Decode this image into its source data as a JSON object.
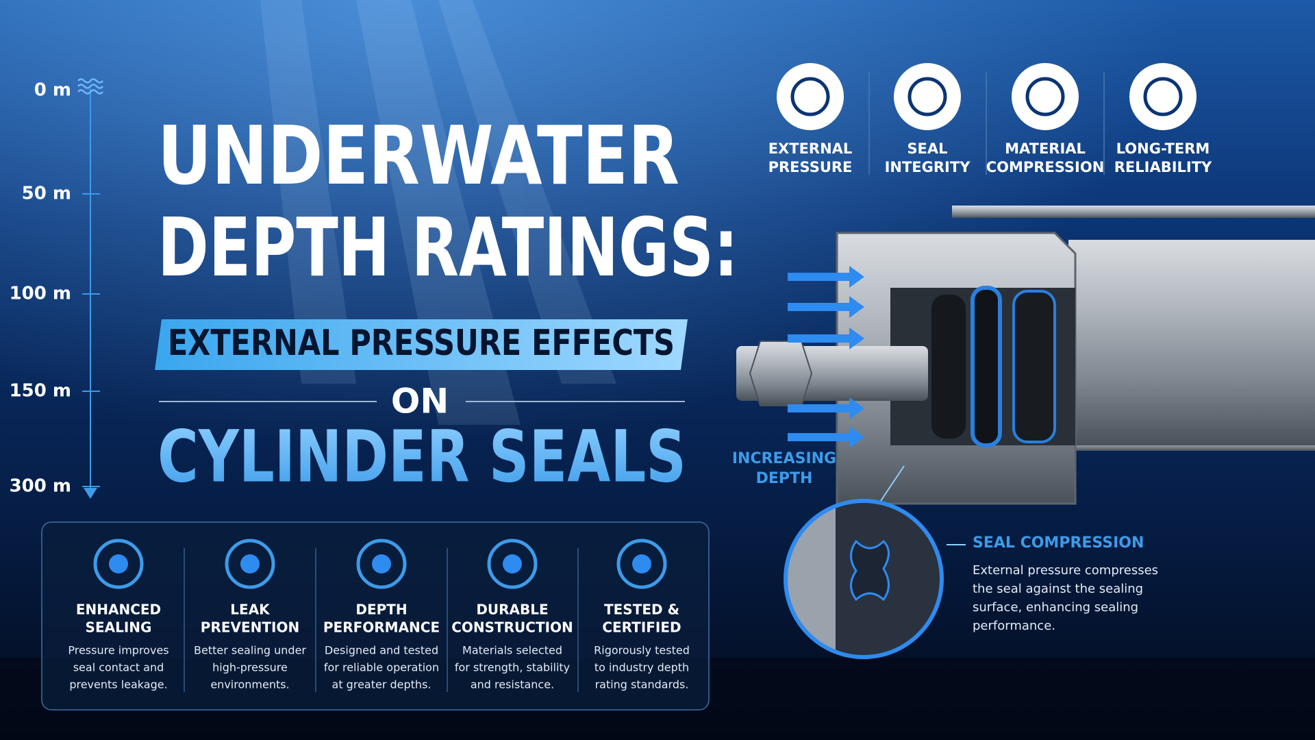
{
  "depth_scale": [
    "0 m",
    "50 m",
    "100 m",
    "150 m",
    "300 m"
  ],
  "title": {
    "line1": "UNDERWATER",
    "line2": "DEPTH RATINGS:",
    "banner": "EXTERNAL PRESSURE EFFECTS",
    "connector": "ON",
    "line3": "CYLINDER SEALS"
  },
  "factors": [
    [
      "EXTERNAL",
      "PRESSURE"
    ],
    [
      "SEAL",
      "INTEGRITY"
    ],
    [
      "MATERIAL",
      "COMPRESSION"
    ],
    [
      "LONG-TERM",
      "RELIABILITY"
    ]
  ],
  "features": [
    {
      "title": [
        "ENHANCED",
        "SEALING"
      ],
      "description": [
        "Pressure improves",
        "seal contact and",
        "prevents leakage."
      ]
    },
    {
      "title": [
        "LEAK",
        "PREVENTION"
      ],
      "description": [
        "Better sealing under",
        "high-pressure",
        "environments."
      ]
    },
    {
      "title": [
        "DEPTH",
        "PERFORMANCE"
      ],
      "description": [
        "Designed and tested",
        "for reliable operation",
        "at greater depths."
      ]
    },
    {
      "title": [
        "DURABLE",
        "CONSTRUCTION"
      ],
      "description": [
        "Materials selected",
        "for strength, stability",
        "and resistance."
      ]
    },
    {
      "title": [
        "TESTED &",
        "CERTIFIED"
      ],
      "description": [
        "Rigorously tested",
        "to industry depth",
        "rating standards."
      ]
    }
  ],
  "diagram": {
    "depth_label": [
      "INCREASING",
      "DEPTH"
    ],
    "callout_title": "SEAL COMPRESSION",
    "callout_text": [
      "External pressure compresses",
      "the seal against the sealing",
      "surface, enhancing sealing",
      "performance."
    ]
  }
}
